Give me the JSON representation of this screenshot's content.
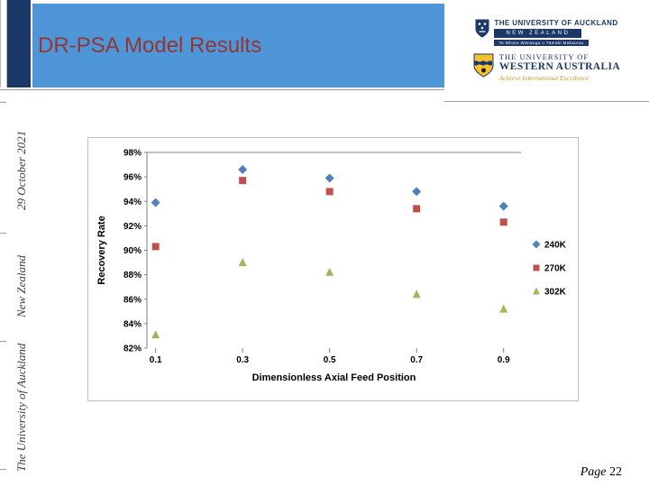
{
  "slide": {
    "title": "DR-PSA Model Results",
    "page_label": "Page",
    "page_number": "22"
  },
  "sidebar": {
    "date": "29 October 2021",
    "country": "New Zealand",
    "university": "The University of Auckland"
  },
  "logos": {
    "uoa": {
      "name": "THE UNIVERSITY OF AUCKLAND",
      "country_banner": "NEW ZEALAND",
      "maori_banner": "Te Whare Wānanga o Tāmaki Makaurau"
    },
    "uwa": {
      "line1": "THE UNIVERSITY OF",
      "line2": "WESTERN AUSTRALIA",
      "tagline": "Achieve International Excellence"
    }
  },
  "colors": {
    "banner_blue": "#4f96d9",
    "navy": "#1c3868",
    "title_red": "#943634",
    "series_blue": "#4F81BD",
    "series_red": "#C0504D",
    "series_green": "#9BBB59"
  },
  "chart_data": {
    "type": "scatter",
    "title": "",
    "xlabel": "Dimensionless Axial Feed Position",
    "ylabel": "Recovery Rate",
    "x": [
      0.1,
      0.3,
      0.5,
      0.7,
      0.9
    ],
    "series": [
      {
        "name": "240K",
        "marker": "diamond",
        "color": "#4F81BD",
        "values": [
          93.9,
          96.6,
          95.9,
          94.8,
          93.6
        ]
      },
      {
        "name": "270K",
        "marker": "square",
        "color": "#C0504D",
        "values": [
          90.3,
          95.7,
          94.8,
          93.4,
          92.3
        ]
      },
      {
        "name": "302K",
        "marker": "triangle",
        "color": "#9BBB59",
        "values": [
          83.1,
          89.0,
          88.2,
          86.4,
          85.2
        ]
      }
    ],
    "ylim": [
      82,
      98
    ],
    "yticks": [
      82,
      84,
      86,
      88,
      90,
      92,
      94,
      96,
      98
    ],
    "ytick_format": "percent",
    "xticks": [
      0.1,
      0.3,
      0.5,
      0.7,
      0.9
    ],
    "xlim": [
      0.08,
      0.94
    ],
    "grid": false,
    "legend_position": "right"
  }
}
